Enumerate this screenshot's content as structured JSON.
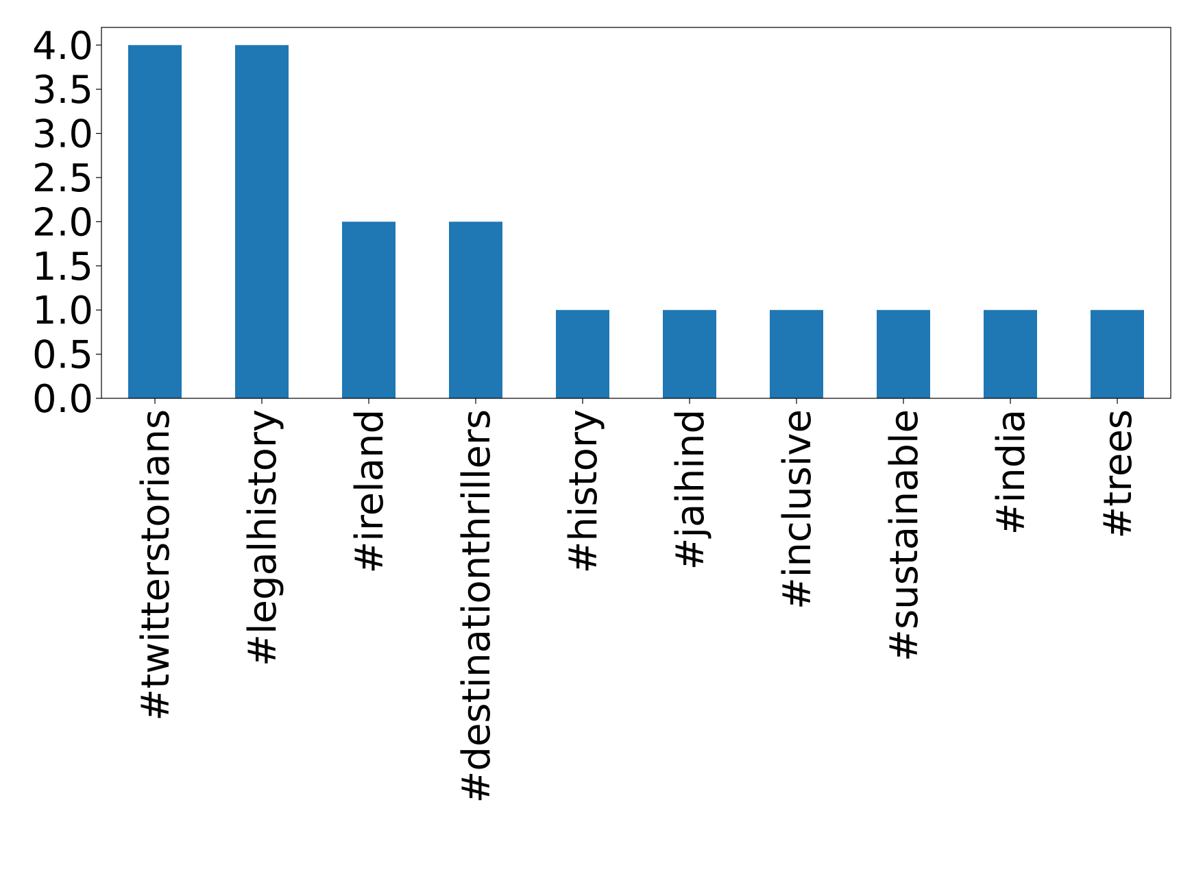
{
  "chart_data": {
    "type": "bar",
    "categories": [
      "#twitterstorians",
      "#legalhistory",
      "#ireland",
      "#destinationthrillers",
      "#history",
      "#jaihind",
      "#inclusive",
      "#sustainable",
      "#india",
      "#trees"
    ],
    "values": [
      4,
      4,
      2,
      2,
      1,
      1,
      1,
      1,
      1,
      1
    ],
    "color": "#1f77b4",
    "ylim": [
      0,
      4.2
    ],
    "yticks": [
      {
        "value": 0,
        "label": "0.0"
      },
      0.5,
      {
        "value": 1,
        "label": "1.0"
      },
      1.5,
      {
        "value": 2,
        "label": "2.0"
      },
      2.5,
      {
        "value": 3,
        "label": "3.0"
      },
      3.5,
      {
        "value": 4,
        "label": "4.0"
      }
    ],
    "grid": false
  }
}
